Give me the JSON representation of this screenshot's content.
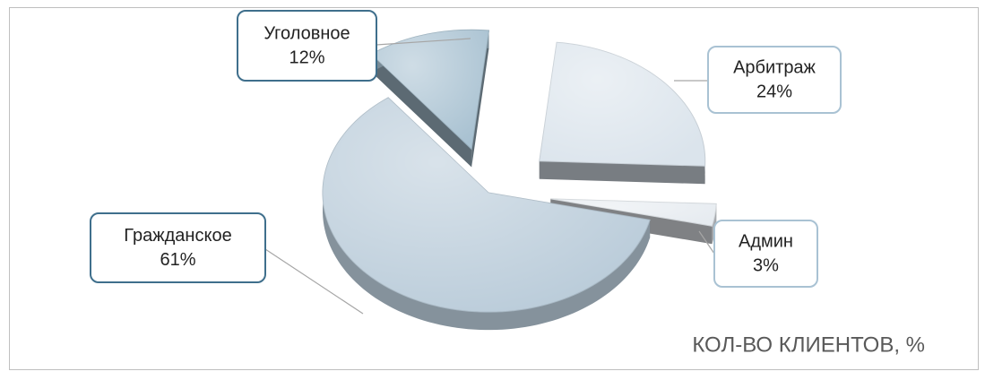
{
  "chart_data": {
    "type": "pie",
    "title": "КОЛ-ВО КЛИЕНТОВ, %",
    "categories": [
      "Арбитраж",
      "Админ",
      "Гражданское",
      "Уголовное"
    ],
    "values": [
      24,
      3,
      61,
      12
    ],
    "value_labels": [
      "24%",
      "3%",
      "61%",
      "12%"
    ],
    "colors": [
      "#dbe4ec",
      "#e6ebf0",
      "#b9cbd9",
      "#a8c1d1"
    ]
  }
}
